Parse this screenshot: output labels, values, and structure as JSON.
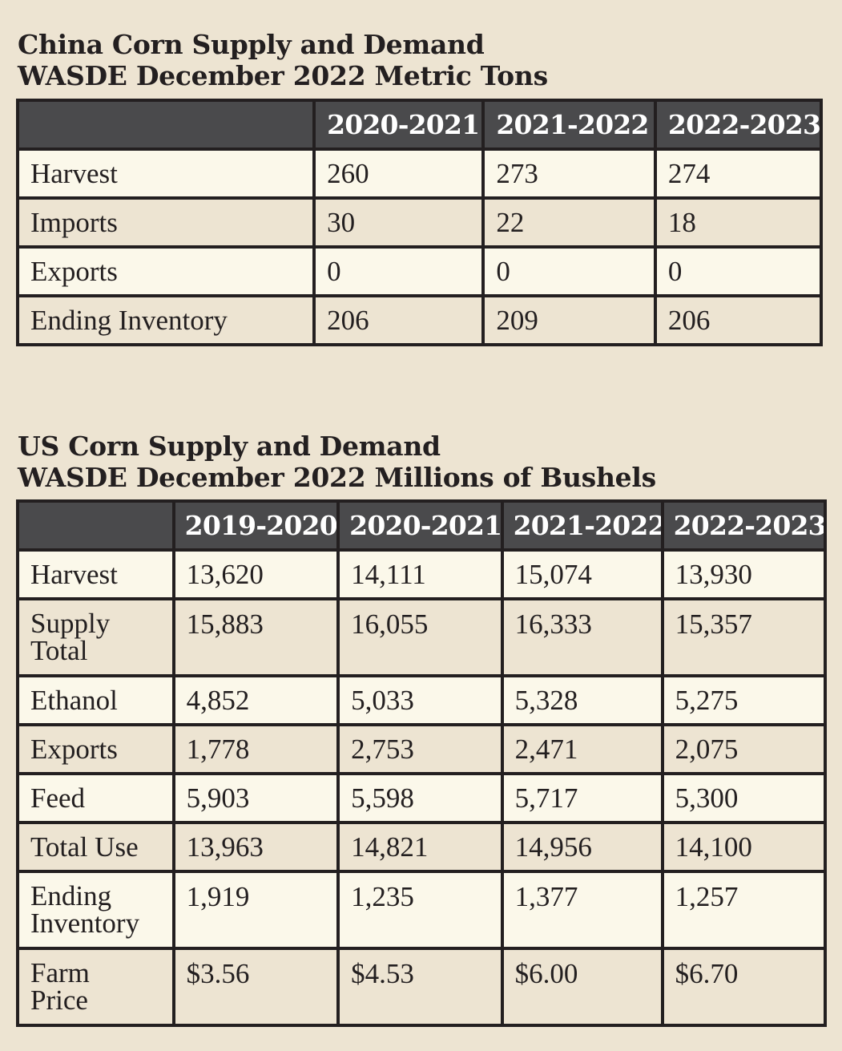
{
  "china": {
    "title_line1": "China Corn Supply and Demand",
    "title_line2": "WASDE December 2022 Metric Tons",
    "columns": [
      "",
      "2020-2021",
      "2021-2022",
      "2022-2023"
    ],
    "rows": [
      {
        "label": "Harvest",
        "values": [
          "260",
          "273",
          "274"
        ]
      },
      {
        "label": "Imports",
        "values": [
          "30",
          "22",
          "18"
        ]
      },
      {
        "label": "Exports",
        "values": [
          "0",
          "0",
          "0"
        ]
      },
      {
        "label": "Ending Inventory",
        "values": [
          "206",
          "209",
          "206"
        ]
      }
    ]
  },
  "us": {
    "title_line1": "US Corn Supply and Demand",
    "title_line2": "WASDE December 2022 Millions of Bushels",
    "columns": [
      "",
      "2019-2020",
      "2020-2021",
      "2021-2022",
      "2022-2023"
    ],
    "rows": [
      {
        "label": [
          "Harvest"
        ],
        "values": [
          "13,620",
          "14,111",
          "15,074",
          "13,930"
        ]
      },
      {
        "label": [
          "Supply",
          "Total"
        ],
        "values": [
          "15,883",
          "16,055",
          "16,333",
          "15,357"
        ]
      },
      {
        "label": [
          "Ethanol"
        ],
        "values": [
          "4,852",
          "5,033",
          "5,328",
          "5,275"
        ]
      },
      {
        "label": [
          "Exports"
        ],
        "values": [
          "1,778",
          "2,753",
          "2,471",
          "2,075"
        ]
      },
      {
        "label": [
          "Feed"
        ],
        "values": [
          "5,903",
          "5,598",
          "5,717",
          "5,300"
        ]
      },
      {
        "label": [
          "Total Use"
        ],
        "values": [
          "13,963",
          "14,821",
          "14,956",
          "14,100"
        ]
      },
      {
        "label": [
          "Ending",
          "Inventory"
        ],
        "values": [
          "1,919",
          "1,235",
          "1,377",
          "1,257"
        ]
      },
      {
        "label": [
          "Farm",
          "Price"
        ],
        "values": [
          "$3.56",
          "$4.53",
          "$6.00",
          "$6.70"
        ]
      }
    ]
  }
}
